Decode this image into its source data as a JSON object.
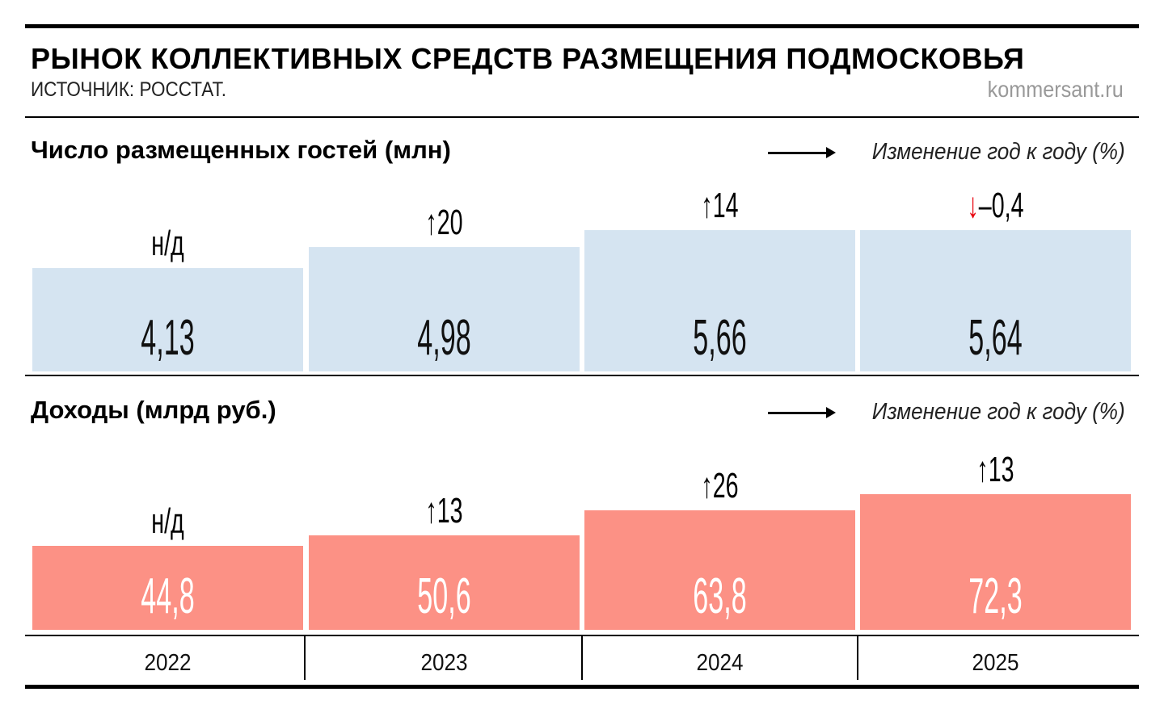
{
  "header": {
    "title": "РЫНОК КОЛЛЕКТИВНЫХ СРЕДСТВ РАЗМЕЩЕНИЯ ПОДМОСКОВЬЯ",
    "source": "ИСТОЧНИК: РОССТАТ.",
    "site": "kommersant.ru"
  },
  "chart_data": [
    {
      "type": "bar",
      "title": "Число размещенных гостей (млн)",
      "legend": "Изменение год к году (%)",
      "categories": [
        "2022",
        "2023",
        "2024",
        "2025"
      ],
      "values": [
        4.13,
        4.98,
        5.66,
        5.64
      ],
      "value_labels": [
        "4,13",
        "4,98",
        "5,66",
        "5,64"
      ],
      "change_labels": [
        "н/д",
        "20",
        "14",
        "–0,4"
      ],
      "change_direction": [
        "none",
        "up",
        "up",
        "down"
      ],
      "color": "#d5e4f1",
      "value_text_color": "#111111"
    },
    {
      "type": "bar",
      "title": "Доходы (млрд руб.)",
      "legend": "Изменение год к году (%)",
      "categories": [
        "2022",
        "2023",
        "2024",
        "2025"
      ],
      "values": [
        44.8,
        50.6,
        63.8,
        72.3
      ],
      "value_labels": [
        "44,8",
        "50,6",
        "63,8",
        "72,3"
      ],
      "change_labels": [
        "н/д",
        "13",
        "26",
        "13"
      ],
      "change_direction": [
        "none",
        "up",
        "up",
        "up"
      ],
      "color": "#fc9185",
      "value_text_color": "#ffffff"
    }
  ],
  "colors": {
    "up_arrow": "#000000",
    "down_arrow": "#e8000b"
  }
}
